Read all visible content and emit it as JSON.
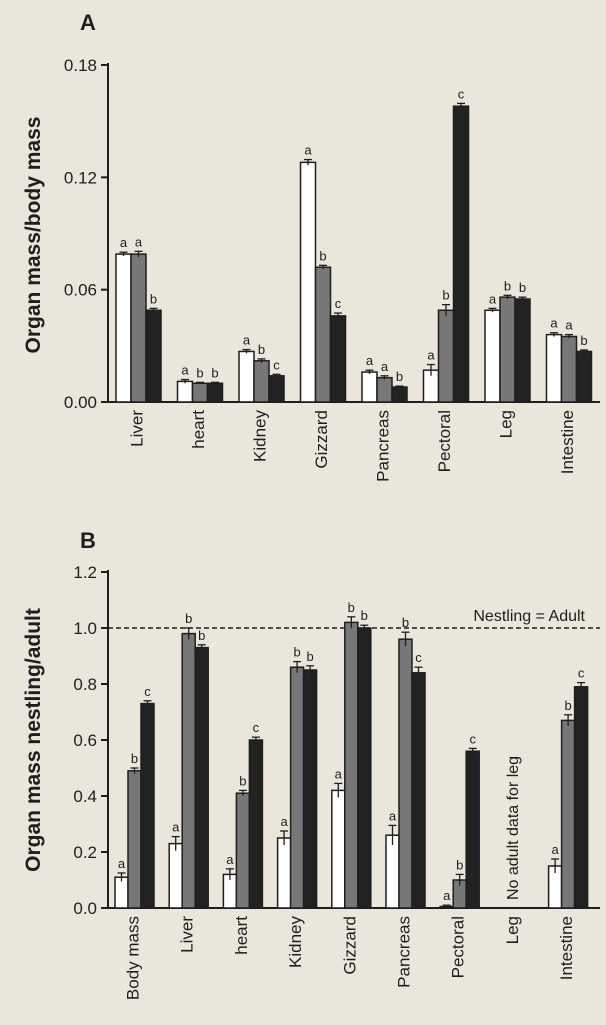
{
  "chart_data": [
    {
      "panel": "A",
      "type": "bar",
      "ylabel": "Organ mass/body mass",
      "ylim": [
        0,
        0.18
      ],
      "yticks": [
        "0.00",
        "0.06",
        "0.12",
        "0.18"
      ],
      "categories": [
        "Liver",
        "heart",
        "Kidney",
        "Gizzard",
        "Pancreas",
        "Pectoral",
        "Leg",
        "Intestine"
      ],
      "series_colors": [
        "#ffffff",
        "#777777",
        "#222222"
      ],
      "series": [
        {
          "values": [
            0.079,
            0.011,
            0.027,
            0.128,
            0.016,
            0.017,
            0.049,
            0.036
          ],
          "errors": [
            0.001,
            0.001,
            0.001,
            0.0015,
            0.001,
            0.003,
            0.001,
            0.001
          ],
          "letters": [
            "a",
            "a",
            "a",
            "a",
            "a",
            "a",
            "a",
            "a"
          ]
        },
        {
          "values": [
            0.079,
            0.01,
            0.022,
            0.072,
            0.013,
            0.049,
            0.056,
            0.035
          ],
          "errors": [
            0.0015,
            0.0005,
            0.001,
            0.001,
            0.001,
            0.003,
            0.001,
            0.001
          ],
          "letters": [
            "a",
            "b",
            "b",
            "b",
            "a",
            "b",
            "b",
            "a"
          ]
        },
        {
          "values": [
            0.049,
            0.01,
            0.014,
            0.046,
            0.008,
            0.158,
            0.055,
            0.027
          ],
          "errors": [
            0.001,
            0.0005,
            0.0008,
            0.0015,
            0.0005,
            0.0015,
            0.001,
            0.0008
          ],
          "letters": [
            "b",
            "b",
            "c",
            "c",
            "b",
            "c",
            "b",
            "b"
          ]
        }
      ]
    },
    {
      "panel": "B",
      "type": "bar",
      "ylabel": "Organ mass nestling/adult",
      "ylim": [
        0,
        1.2
      ],
      "yticks": [
        "0.0",
        "0.2",
        "0.4",
        "0.6",
        "0.8",
        "1.0",
        "1.2"
      ],
      "categories": [
        "Body mass",
        "Liver",
        "heart",
        "Kidney",
        "Gizzard",
        "Pancreas",
        "Pectoral",
        "Leg",
        "Intestine"
      ],
      "reference_line": {
        "y": 1.0,
        "label": "Nestling = Adult",
        "style": "dashed"
      },
      "missing_note": {
        "category": "Leg",
        "text": "No adult data for leg"
      },
      "series_colors": [
        "#ffffff",
        "#777777",
        "#222222"
      ],
      "series": [
        {
          "values": [
            0.11,
            0.23,
            0.12,
            0.25,
            0.42,
            0.26,
            0.005,
            null,
            0.15
          ],
          "errors": [
            0.015,
            0.025,
            0.02,
            0.025,
            0.025,
            0.035,
            0.005,
            null,
            0.025
          ],
          "letters": [
            "a",
            "a",
            "a",
            "a",
            "a",
            "a",
            "a",
            "",
            "a"
          ]
        },
        {
          "values": [
            0.49,
            0.98,
            0.41,
            0.86,
            1.02,
            0.96,
            0.1,
            null,
            0.67
          ],
          "errors": [
            0.01,
            0.02,
            0.01,
            0.02,
            0.02,
            0.025,
            0.02,
            null,
            0.02
          ],
          "letters": [
            "b",
            "b",
            "b",
            "b",
            "b",
            "b",
            "b",
            "",
            "b"
          ]
        },
        {
          "values": [
            0.73,
            0.93,
            0.6,
            0.85,
            1.0,
            0.84,
            0.56,
            null,
            0.79
          ],
          "errors": [
            0.01,
            0.01,
            0.01,
            0.015,
            0.01,
            0.02,
            0.01,
            null,
            0.015
          ],
          "letters": [
            "c",
            "b",
            "c",
            "b",
            "b",
            "c",
            "c",
            "",
            "c"
          ]
        }
      ]
    }
  ]
}
